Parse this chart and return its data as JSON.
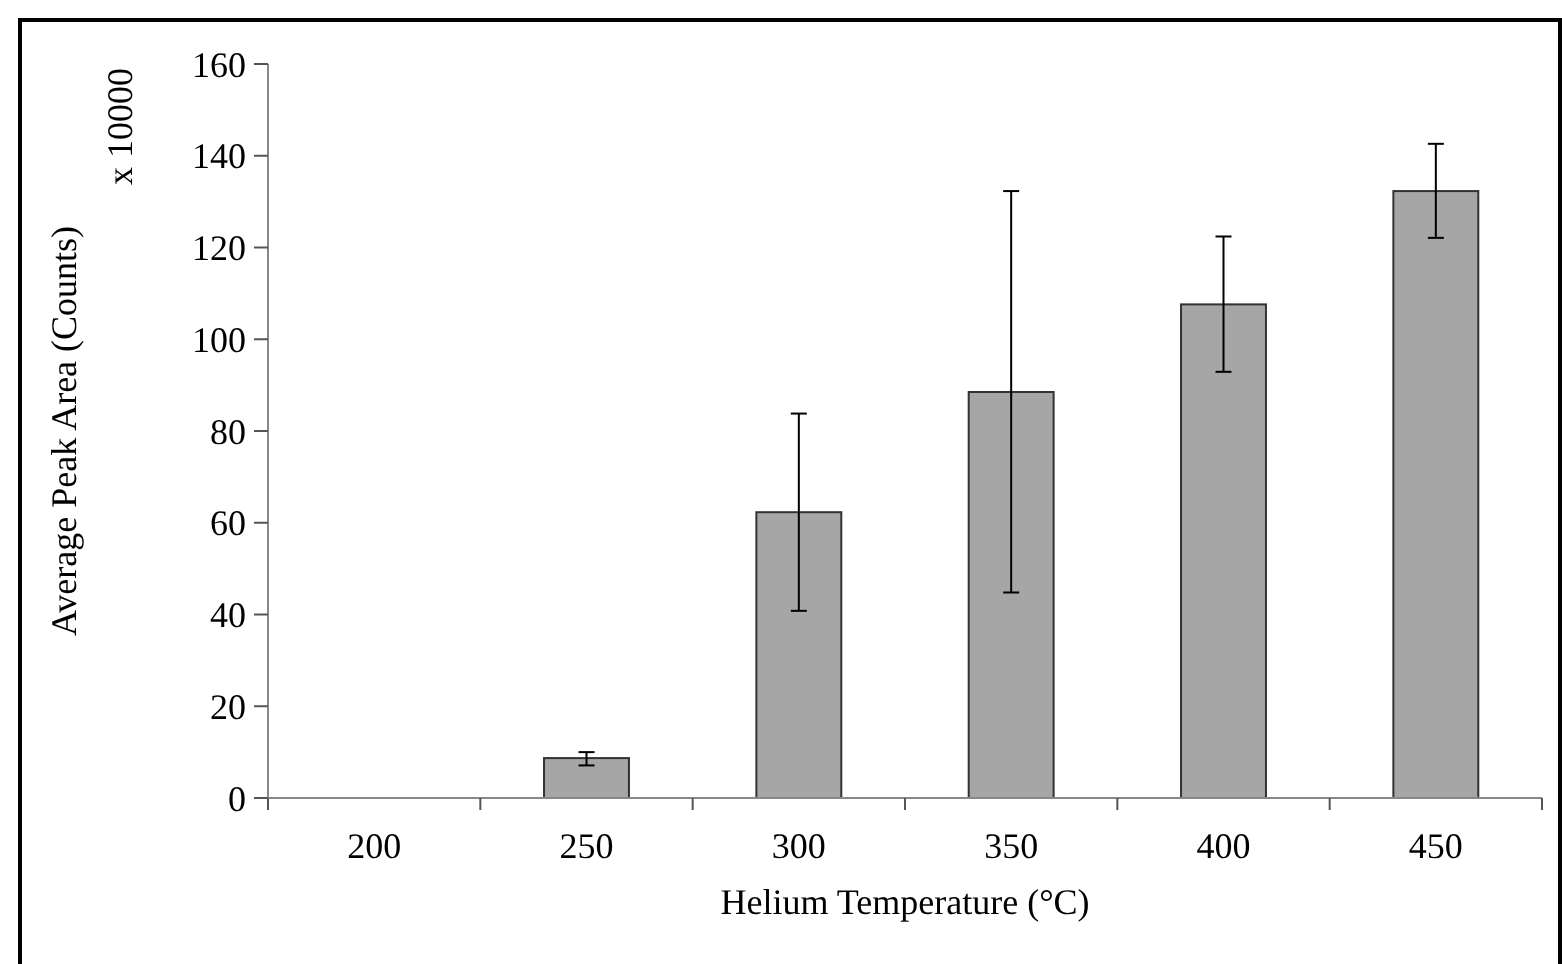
{
  "chart_data": {
    "type": "bar",
    "xlabel": "Helium Temperature (°C)",
    "ylabel": "Average Peak Area (Counts)",
    "annotations": [
      "x 10000"
    ],
    "categories": [
      "200",
      "250",
      "300",
      "350",
      "400",
      "450"
    ],
    "values": [
      0,
      8.7,
      62.3,
      88.5,
      107.6,
      132.3
    ],
    "errors": [
      null,
      [
        7.1,
        10.0
      ],
      [
        40.8,
        83.8
      ],
      [
        44.8,
        132.3
      ],
      [
        92.9,
        122.4
      ],
      [
        122.1,
        142.6
      ]
    ],
    "color": "#a6a6a6",
    "ylim": [
      0,
      160
    ],
    "yticks": [
      0,
      20,
      40,
      60,
      80,
      100,
      120,
      140,
      160
    ],
    "grid": false
  }
}
